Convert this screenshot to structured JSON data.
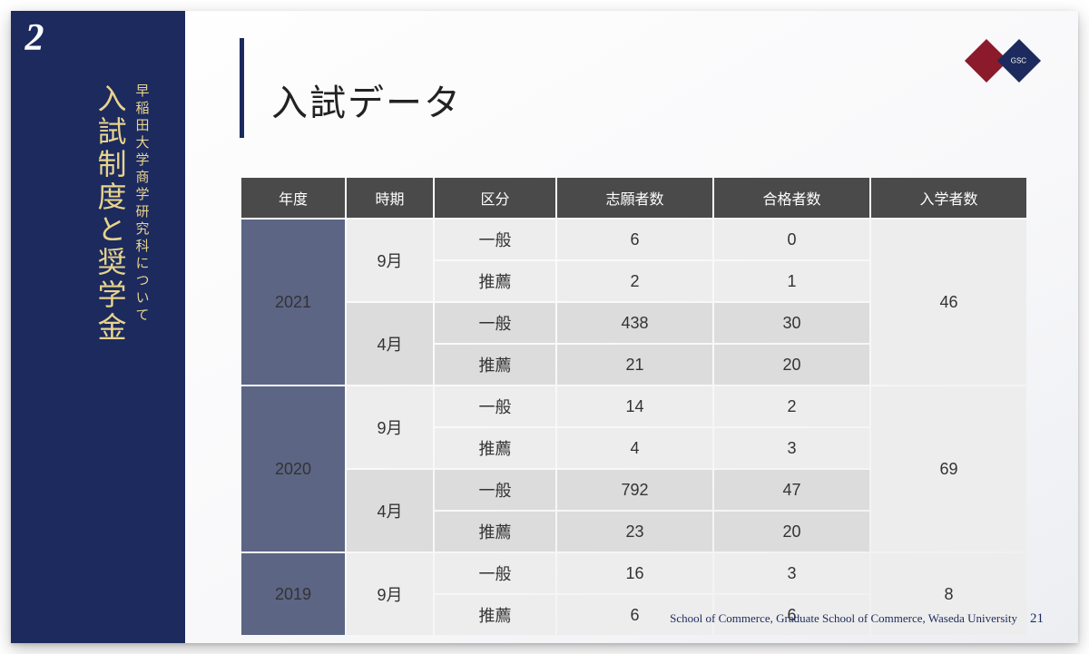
{
  "chapter_number": "2",
  "sidebar_sub": "早稲田大学商学研究科について",
  "sidebar_main": "入試制度と奨学金",
  "title": "入試データ",
  "logo_text": "GSC",
  "table": {
    "columns": [
      "年度",
      "時期",
      "区分",
      "志願者数",
      "合格者数",
      "入学者数"
    ],
    "years": [
      {
        "year": "2021",
        "enrolled": "46",
        "periods": [
          {
            "period": "9月",
            "rows": [
              {
                "cat": "一般",
                "applicants": "6",
                "pass": "0"
              },
              {
                "cat": "推薦",
                "applicants": "2",
                "pass": "1"
              }
            ]
          },
          {
            "period": "4月",
            "rows": [
              {
                "cat": "一般",
                "applicants": "438",
                "pass": "30"
              },
              {
                "cat": "推薦",
                "applicants": "21",
                "pass": "20"
              }
            ]
          }
        ]
      },
      {
        "year": "2020",
        "enrolled": "69",
        "periods": [
          {
            "period": "9月",
            "rows": [
              {
                "cat": "一般",
                "applicants": "14",
                "pass": "2"
              },
              {
                "cat": "推薦",
                "applicants": "4",
                "pass": "3"
              }
            ]
          },
          {
            "period": "4月",
            "rows": [
              {
                "cat": "一般",
                "applicants": "792",
                "pass": "47"
              },
              {
                "cat": "推薦",
                "applicants": "23",
                "pass": "20"
              }
            ]
          }
        ]
      },
      {
        "year": "2019",
        "enrolled": "8",
        "periods": [
          {
            "period": "9月",
            "rows": [
              {
                "cat": "一般",
                "applicants": "16",
                "pass": "3"
              },
              {
                "cat": "推薦",
                "applicants": "6",
                "pass": "6"
              }
            ]
          }
        ]
      }
    ]
  },
  "footer_text": "School of Commerce, Graduate School of Commerce, Waseda University",
  "page_number": "21",
  "colors": {
    "navy": "#1c2a5e",
    "gold": "#e8d48c",
    "header_bg": "#4a4a4a",
    "year_bg": "#5c6584",
    "row_light": "#ededed",
    "row_dark": "#dcdcdc",
    "logo_red": "#8b1a2b"
  }
}
